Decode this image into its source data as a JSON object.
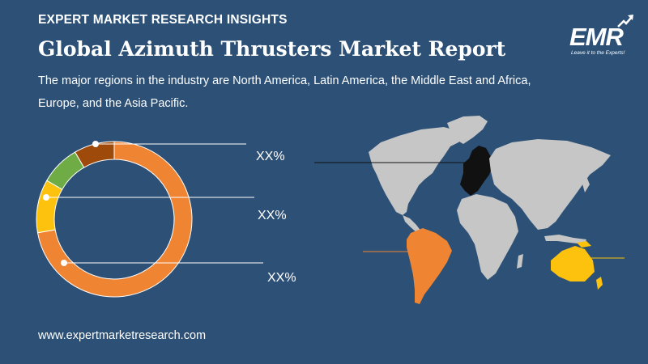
{
  "header": {
    "label": "EXPERT MARKET RESEARCH INSIGHTS",
    "title": "Global Azimuth Thrusters Market Report",
    "subtitle": "The major regions in the industry are North America, Latin America, the Middle East and Africa, Europe, and the Asia Pacific."
  },
  "logo": {
    "text": "EMR",
    "tagline": "Leave it to the Experts!"
  },
  "footer": {
    "url": "www.expertmarketresearch.com"
  },
  "colors": {
    "background": "#2c5076",
    "orange": "#ef8433",
    "yellow": "#fdc20e",
    "green": "#6fac46",
    "brown": "#9d4a0a",
    "europe": "#111111",
    "map_land": "#c6c6c6"
  },
  "chart_data": {
    "type": "pie",
    "style": "donut",
    "slices": [
      {
        "color": "#ef8433",
        "share": 0.722
      },
      {
        "color": "#fdc20e",
        "share": 0.111
      },
      {
        "color": "#6fac46",
        "share": 0.083
      },
      {
        "color": "#9d4a0a",
        "share": 0.084
      }
    ],
    "labels": [
      "XX%",
      "XX%",
      "XX%"
    ]
  },
  "map": {
    "highlighted_regions": [
      {
        "region": "Europe",
        "color": "#111111"
      },
      {
        "region": "South America",
        "color": "#ef8433"
      },
      {
        "region": "Oceania",
        "color": "#fdc20e"
      }
    ]
  }
}
